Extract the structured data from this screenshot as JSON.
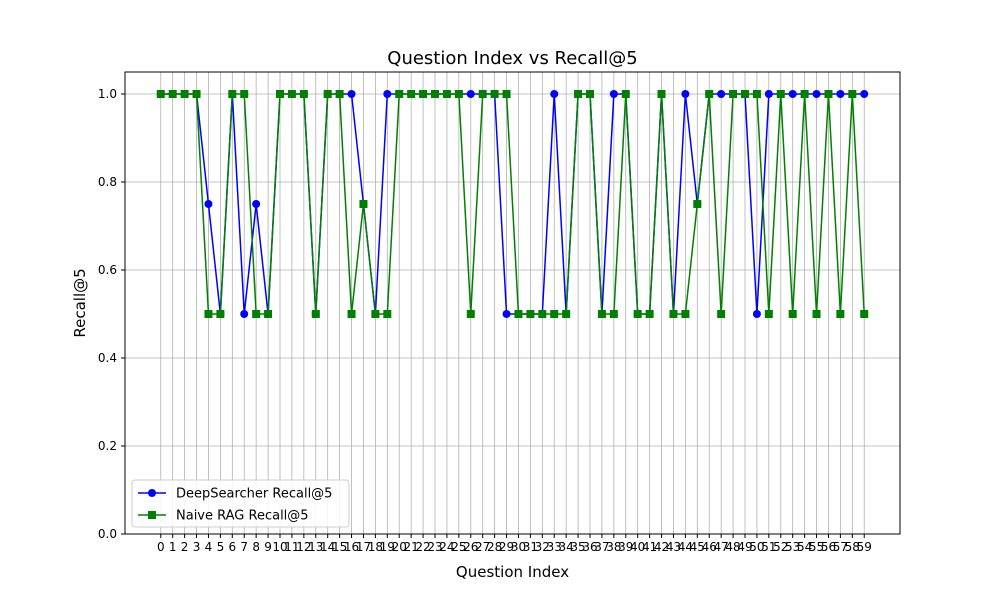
{
  "chart_data": {
    "type": "line",
    "title": "Question Index vs Recall@5",
    "xlabel": "Question Index",
    "ylabel": "Recall@5",
    "x": [
      0,
      1,
      2,
      3,
      4,
      5,
      6,
      7,
      8,
      9,
      10,
      11,
      12,
      13,
      14,
      15,
      16,
      17,
      18,
      19,
      20,
      21,
      22,
      23,
      24,
      25,
      26,
      27,
      28,
      29,
      30,
      31,
      32,
      33,
      34,
      35,
      36,
      37,
      38,
      39,
      40,
      41,
      42,
      43,
      44,
      45,
      46,
      47,
      48,
      49,
      50,
      51,
      52,
      53,
      54,
      55,
      56,
      57,
      58,
      59
    ],
    "xlim": [
      -3,
      62
    ],
    "ylim": [
      0,
      1.05
    ],
    "yticks": [
      0.0,
      0.2,
      0.4,
      0.6,
      0.8,
      1.0
    ],
    "ytick_labels": [
      "0.0",
      "0.2",
      "0.4",
      "0.6",
      "0.8",
      "1.0"
    ],
    "grid": true,
    "legend_position": "lower-left",
    "series": [
      {
        "name": "DeepSearcher Recall@5",
        "color": "#0000ff",
        "marker": "circle",
        "values": [
          1.0,
          1.0,
          1.0,
          1.0,
          0.75,
          0.5,
          1.0,
          0.5,
          0.75,
          0.5,
          1.0,
          1.0,
          1.0,
          0.5,
          1.0,
          1.0,
          1.0,
          0.75,
          0.5,
          1.0,
          1.0,
          1.0,
          1.0,
          1.0,
          1.0,
          1.0,
          1.0,
          1.0,
          1.0,
          0.5,
          0.5,
          0.5,
          0.5,
          1.0,
          0.5,
          1.0,
          1.0,
          0.5,
          1.0,
          1.0,
          0.5,
          0.5,
          1.0,
          0.5,
          1.0,
          0.75,
          1.0,
          1.0,
          1.0,
          1.0,
          0.5,
          1.0,
          1.0,
          1.0,
          1.0,
          1.0,
          1.0,
          1.0,
          1.0,
          1.0
        ]
      },
      {
        "name": "Naive RAG Recall@5",
        "color": "#008000",
        "marker": "square",
        "values": [
          1.0,
          1.0,
          1.0,
          1.0,
          0.5,
          0.5,
          1.0,
          1.0,
          0.5,
          0.5,
          1.0,
          1.0,
          1.0,
          0.5,
          1.0,
          1.0,
          0.5,
          0.75,
          0.5,
          0.5,
          1.0,
          1.0,
          1.0,
          1.0,
          1.0,
          1.0,
          0.5,
          1.0,
          1.0,
          1.0,
          0.5,
          0.5,
          0.5,
          0.5,
          0.5,
          1.0,
          1.0,
          0.5,
          0.5,
          1.0,
          0.5,
          0.5,
          1.0,
          0.5,
          0.5,
          0.75,
          1.0,
          0.5,
          1.0,
          1.0,
          1.0,
          0.5,
          1.0,
          0.5,
          1.0,
          0.5,
          1.0,
          0.5,
          1.0,
          0.5
        ]
      }
    ]
  }
}
